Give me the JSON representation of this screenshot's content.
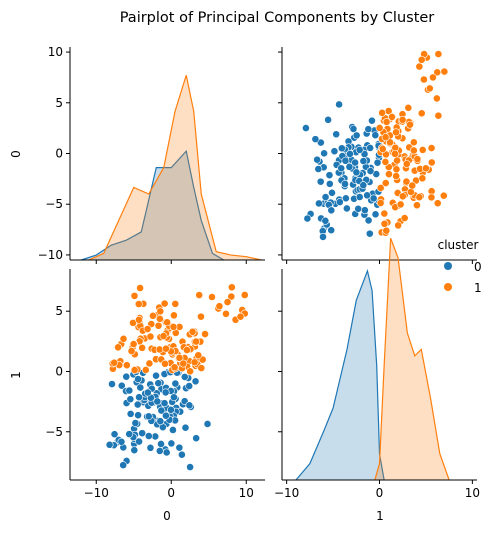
{
  "chart_data": {
    "type": "scatter",
    "title": "Pairplot of Principal Components by Cluster",
    "variables": [
      "0",
      "1"
    ],
    "xlabels": [
      "0",
      "1"
    ],
    "ylabels": [
      "0",
      "1"
    ],
    "var_ranges": {
      "0": [
        -13.5,
        12.5
      ],
      "1": [
        -10.5,
        10.5
      ]
    },
    "ylims": {
      "0": [
        -10.5,
        10.5
      ],
      "1": [
        -9.0,
        8.5
      ]
    },
    "ticks": {
      "0": [
        -10,
        0,
        10
      ],
      "1": [
        -10,
        0,
        10
      ],
      "0_y": [
        -10,
        -5,
        0,
        5,
        10
      ],
      "1_y": [
        -5,
        0,
        5
      ]
    },
    "legend": {
      "title": "cluster",
      "entries": [
        "0",
        "1"
      ],
      "placement": "right"
    },
    "colors": {
      "0": "#1f77b4",
      "1": "#ff7f0e"
    },
    "grid": false,
    "series": [
      {
        "name": "0",
        "clusters": [
          {
            "cx0": -3.5,
            "sx0": 2.2,
            "cx1": -2.5,
            "sx1": 1.6,
            "n": 55
          },
          {
            "cx0": -6.5,
            "sx0": 1.2,
            "cx1": -6.0,
            "sx1": 1.0,
            "n": 12
          },
          {
            "cx0": 0.5,
            "sx0": 1.6,
            "cx1": -2.0,
            "sx1": 1.4,
            "n": 35
          },
          {
            "cx0": -1.0,
            "sx0": 2.5,
            "cx1": -4.0,
            "sx1": 1.8,
            "n": 30
          }
        ]
      },
      {
        "name": "1",
        "clusters": [
          {
            "cx0": -1.5,
            "sx0": 2.8,
            "cx1": 3.5,
            "sx1": 1.8,
            "n": 60
          },
          {
            "cx0": 2.0,
            "sx0": 2.0,
            "cx1": 1.5,
            "sx1": 1.2,
            "n": 40
          },
          {
            "cx0": 8.0,
            "sx0": 1.2,
            "cx1": 5.5,
            "sx1": 1.2,
            "n": 12
          },
          {
            "cx0": -6.0,
            "sx0": 1.5,
            "cx1": 1.5,
            "sx1": 1.0,
            "n": 15
          }
        ]
      }
    ],
    "kde": {
      "0": {
        "0": [
          [
            -12.0,
            0.0
          ],
          [
            -10.0,
            0.015
          ],
          [
            -8.0,
            0.045
          ],
          [
            -6.0,
            0.06
          ],
          [
            -4.0,
            0.085
          ],
          [
            -2.0,
            0.28
          ],
          [
            0.0,
            0.28
          ],
          [
            2.0,
            0.33
          ],
          [
            3.0,
            0.22
          ],
          [
            4.0,
            0.12
          ],
          [
            5.5,
            0.02
          ],
          [
            7.0,
            0.0
          ]
        ],
        "1": [
          [
            -11.0,
            0.0
          ],
          [
            -9.0,
            0.02
          ],
          [
            -7.0,
            0.12
          ],
          [
            -5.0,
            0.22
          ],
          [
            -3.0,
            0.2
          ],
          [
            -1.0,
            0.28
          ],
          [
            0.5,
            0.45
          ],
          [
            2.0,
            0.56
          ],
          [
            3.0,
            0.45
          ],
          [
            4.0,
            0.2
          ],
          [
            6.0,
            0.025
          ],
          [
            8.0,
            0.015
          ],
          [
            10.0,
            0.01
          ],
          [
            12.0,
            0.0
          ]
        ]
      },
      "1": {
        "0": [
          [
            -9.0,
            0.0
          ],
          [
            -7.5,
            0.05
          ],
          [
            -6.0,
            0.15
          ],
          [
            -5.0,
            0.22
          ],
          [
            -3.5,
            0.4
          ],
          [
            -2.5,
            0.55
          ],
          [
            -1.3,
            0.64
          ],
          [
            -0.8,
            0.58
          ],
          [
            -0.3,
            0.35
          ],
          [
            0.0,
            0.08
          ],
          [
            0.5,
            0.0
          ]
        ],
        "1": [
          [
            -0.5,
            0.0
          ],
          [
            0.0,
            0.05
          ],
          [
            0.5,
            0.35
          ],
          [
            1.2,
            0.74
          ],
          [
            2.0,
            0.68
          ],
          [
            3.0,
            0.45
          ],
          [
            3.8,
            0.38
          ],
          [
            4.5,
            0.4
          ],
          [
            5.5,
            0.25
          ],
          [
            6.5,
            0.08
          ],
          [
            7.5,
            0.0
          ]
        ]
      }
    }
  }
}
